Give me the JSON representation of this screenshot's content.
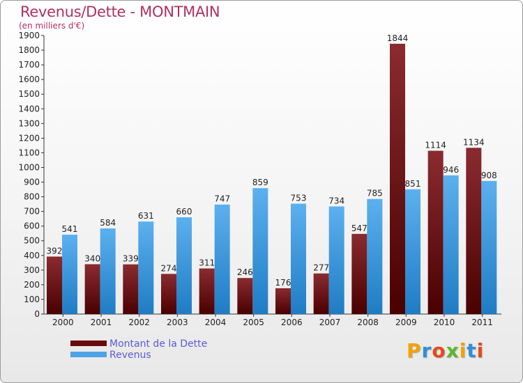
{
  "chart_data": {
    "type": "bar",
    "title": "Revenus/Dette - MONTMAIN",
    "subtitle": "(en milliers d'€)",
    "categories": [
      "2000",
      "2001",
      "2002",
      "2003",
      "2004",
      "2005",
      "2006",
      "2007",
      "2008",
      "2009",
      "2010",
      "2011"
    ],
    "series": [
      {
        "name": "Montant de la Dette",
        "values": [
          392,
          340,
          339,
          274,
          311,
          246,
          176,
          277,
          547,
          1844,
          1114,
          1134
        ],
        "color": "#7a1e24"
      },
      {
        "name": "Revenus",
        "values": [
          541,
          584,
          631,
          660,
          747,
          859,
          753,
          734,
          785,
          851,
          946,
          908
        ],
        "color": "#4da3e6"
      }
    ],
    "ylim": [
      0,
      1900
    ],
    "ytick_step": 100,
    "grid": false,
    "legend_position": "bottom-left"
  },
  "legend": {
    "dette_label": "Montant de la Dette",
    "revenus_label": "Revenus",
    "dette_color": "#6b0a0a",
    "revenus_color": "#4da3e6"
  },
  "logo": {
    "letters": [
      "P",
      "r",
      "o",
      "x",
      "i",
      "t",
      "i"
    ],
    "colors": [
      "#f2a100",
      "#2f8fd8",
      "#e64a19",
      "#5cb82e",
      "#f2a100",
      "#2f8fd8",
      "#e64a19"
    ]
  }
}
